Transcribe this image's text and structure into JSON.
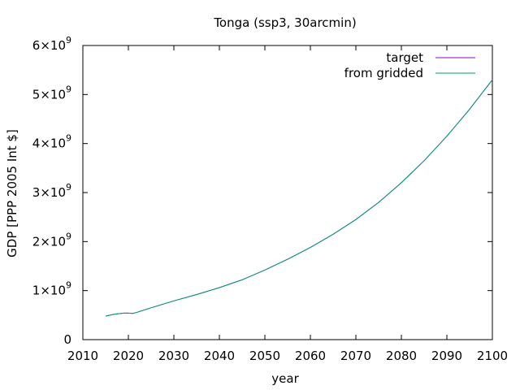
{
  "chart_data": {
    "type": "line",
    "title": "Tonga (ssp3, 30arcmin)",
    "xlabel": "year",
    "ylabel": "GDP [PPP 2005 Int $]",
    "xlim": [
      2010,
      2100
    ],
    "ylim": [
      0,
      6000000000
    ],
    "grid": false,
    "legend_position": "top-right",
    "x_ticks": [
      2010,
      2020,
      2030,
      2040,
      2050,
      2060,
      2070,
      2080,
      2090,
      2100
    ],
    "x_tick_labels": [
      "2010",
      "2020",
      "2030",
      "2040",
      "2050",
      "2060",
      "2070",
      "2080",
      "2090",
      "2100"
    ],
    "y_ticks": [
      0,
      1000000000,
      2000000000,
      3000000000,
      4000000000,
      5000000000,
      6000000000
    ],
    "y_tick_labels": [
      {
        "mantissa": "0",
        "exp": ""
      },
      {
        "mantissa": "1×10",
        "exp": "9"
      },
      {
        "mantissa": "2×10",
        "exp": "9"
      },
      {
        "mantissa": "3×10",
        "exp": "9"
      },
      {
        "mantissa": "4×10",
        "exp": "9"
      },
      {
        "mantissa": "5×10",
        "exp": "9"
      },
      {
        "mantissa": "6×10",
        "exp": "9"
      }
    ],
    "series": [
      {
        "name": "target",
        "color": "#9400d3",
        "x": [
          2015,
          2017,
          2019,
          2020,
          2021,
          2022,
          2025,
          2030,
          2035,
          2040,
          2045,
          2050,
          2055,
          2060,
          2065,
          2070,
          2075,
          2080,
          2085,
          2090,
          2095,
          2100
        ],
        "y": [
          480000000,
          520000000,
          540000000,
          540000000,
          535000000,
          560000000,
          650000000,
          790000000,
          920000000,
          1060000000,
          1220000000,
          1420000000,
          1640000000,
          1880000000,
          2150000000,
          2450000000,
          2800000000,
          3200000000,
          3650000000,
          4150000000,
          4700000000,
          5300000000
        ]
      },
      {
        "name": "from gridded",
        "color": "#009e73",
        "x": [
          2015,
          2017,
          2019,
          2020,
          2021,
          2022,
          2025,
          2030,
          2035,
          2040,
          2045,
          2050,
          2055,
          2060,
          2065,
          2070,
          2075,
          2080,
          2085,
          2090,
          2095,
          2100
        ],
        "y": [
          480000000,
          520000000,
          540000000,
          540000000,
          535000000,
          560000000,
          650000000,
          790000000,
          920000000,
          1060000000,
          1220000000,
          1420000000,
          1640000000,
          1880000000,
          2150000000,
          2450000000,
          2800000000,
          3200000000,
          3650000000,
          4150000000,
          4700000000,
          5300000000
        ]
      }
    ]
  }
}
